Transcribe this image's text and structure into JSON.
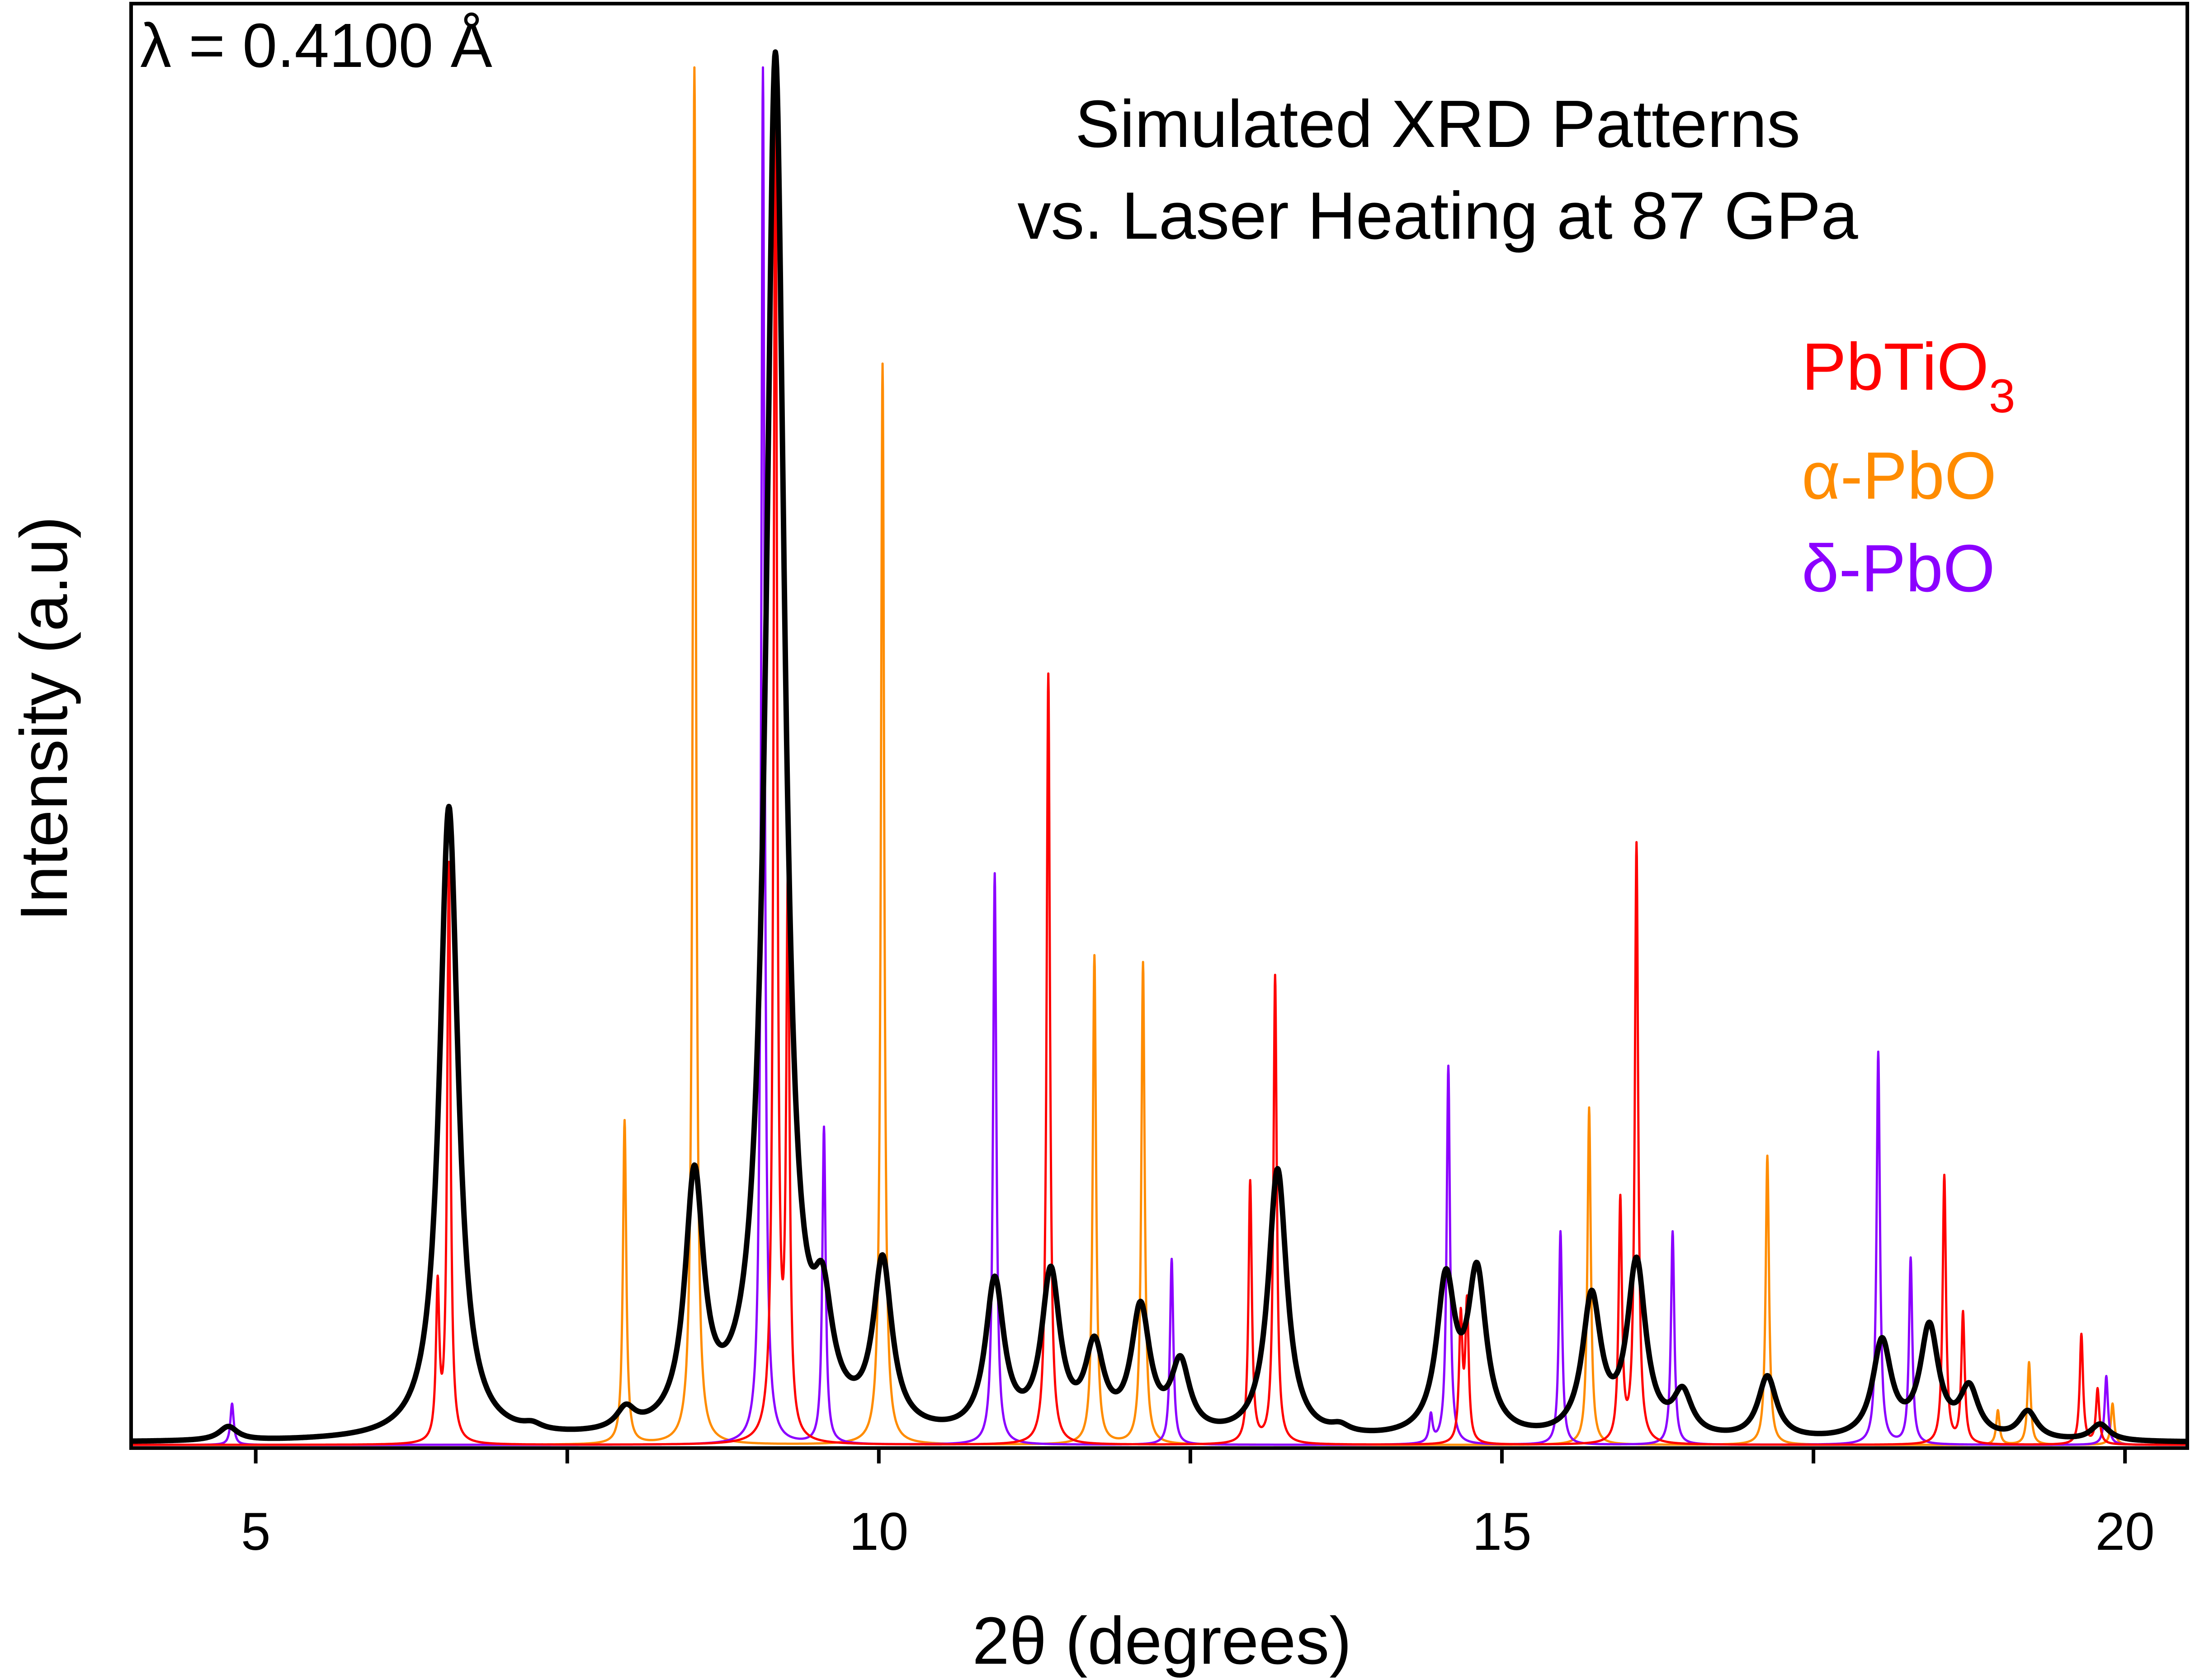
{
  "chart_data": {
    "type": "line",
    "title_lines": [
      "Simulated XRD Patterns",
      "vs. Laser  Heating at 87 GPa"
    ],
    "wavelength_label": "λ = 0.4100 Å",
    "xlabel": "2θ (degrees)",
    "ylabel": "Intensity (a.u)",
    "xlim": [
      4.0,
      20.5
    ],
    "ylim": [
      0,
      1000
    ],
    "x_ticks": [
      5,
      10,
      15,
      20
    ],
    "x_minor_ticks": [
      7.5,
      12.5,
      17.5
    ],
    "y_ticks_visible": false,
    "grid": false,
    "legend_position": "top-right",
    "series": [
      {
        "name": "PbTiO3",
        "legend_base": "PbTiO",
        "legend_sub": "3",
        "color": "#ff0000",
        "peaks": [
          {
            "x": 6.46,
            "y": 110
          },
          {
            "x": 6.55,
            "y": 420
          },
          {
            "x": 9.17,
            "y": 1000
          },
          {
            "x": 9.27,
            "y": 390
          },
          {
            "x": 11.36,
            "y": 560
          },
          {
            "x": 12.98,
            "y": 190
          },
          {
            "x": 13.18,
            "y": 340
          },
          {
            "x": 14.67,
            "y": 90
          },
          {
            "x": 14.72,
            "y": 100
          },
          {
            "x": 15.95,
            "y": 175
          },
          {
            "x": 16.08,
            "y": 435
          },
          {
            "x": 18.55,
            "y": 195
          },
          {
            "x": 18.7,
            "y": 95
          },
          {
            "x": 19.65,
            "y": 80
          },
          {
            "x": 19.78,
            "y": 40
          }
        ]
      },
      {
        "name": "α-PbO",
        "color": "#ff8c00",
        "peaks": [
          {
            "x": 7.96,
            "y": 235
          },
          {
            "x": 8.52,
            "y": 1000
          },
          {
            "x": 10.03,
            "y": 785
          },
          {
            "x": 11.73,
            "y": 355
          },
          {
            "x": 12.12,
            "y": 350
          },
          {
            "x": 15.7,
            "y": 245
          },
          {
            "x": 17.13,
            "y": 210
          },
          {
            "x": 18.98,
            "y": 25
          },
          {
            "x": 19.23,
            "y": 60
          },
          {
            "x": 19.9,
            "y": 30
          }
        ]
      },
      {
        "name": "δ-PbO",
        "color": "#8b00ff",
        "peaks": [
          {
            "x": 4.81,
            "y": 30
          },
          {
            "x": 9.07,
            "y": 1000
          },
          {
            "x": 9.56,
            "y": 230
          },
          {
            "x": 10.93,
            "y": 415
          },
          {
            "x": 12.35,
            "y": 135
          },
          {
            "x": 14.43,
            "y": 20
          },
          {
            "x": 14.57,
            "y": 275
          },
          {
            "x": 15.47,
            "y": 155
          },
          {
            "x": 16.37,
            "y": 155
          },
          {
            "x": 18.02,
            "y": 285
          },
          {
            "x": 18.28,
            "y": 135
          },
          {
            "x": 19.85,
            "y": 50
          }
        ]
      },
      {
        "name": "",
        "color": "#000000",
        "peaks": [
          {
            "x": 4.78,
            "y": 10
          },
          {
            "x": 6.55,
            "y": 460
          },
          {
            "x": 7.22,
            "y": 4
          },
          {
            "x": 7.97,
            "y": 15
          },
          {
            "x": 8.52,
            "y": 180
          },
          {
            "x": 9.17,
            "y": 1000
          },
          {
            "x": 9.55,
            "y": 70
          },
          {
            "x": 10.03,
            "y": 120
          },
          {
            "x": 10.93,
            "y": 110
          },
          {
            "x": 11.38,
            "y": 115
          },
          {
            "x": 11.73,
            "y": 60
          },
          {
            "x": 12.1,
            "y": 90
          },
          {
            "x": 12.42,
            "y": 50
          },
          {
            "x": 13.2,
            "y": 195
          },
          {
            "x": 13.7,
            "y": 5
          },
          {
            "x": 14.55,
            "y": 110
          },
          {
            "x": 14.8,
            "y": 115
          },
          {
            "x": 15.72,
            "y": 100
          },
          {
            "x": 16.08,
            "y": 125
          },
          {
            "x": 16.45,
            "y": 30
          },
          {
            "x": 17.13,
            "y": 45
          },
          {
            "x": 18.05,
            "y": 70
          },
          {
            "x": 18.43,
            "y": 80
          },
          {
            "x": 18.75,
            "y": 35
          },
          {
            "x": 19.22,
            "y": 20
          },
          {
            "x": 19.8,
            "y": 12
          }
        ]
      }
    ]
  }
}
